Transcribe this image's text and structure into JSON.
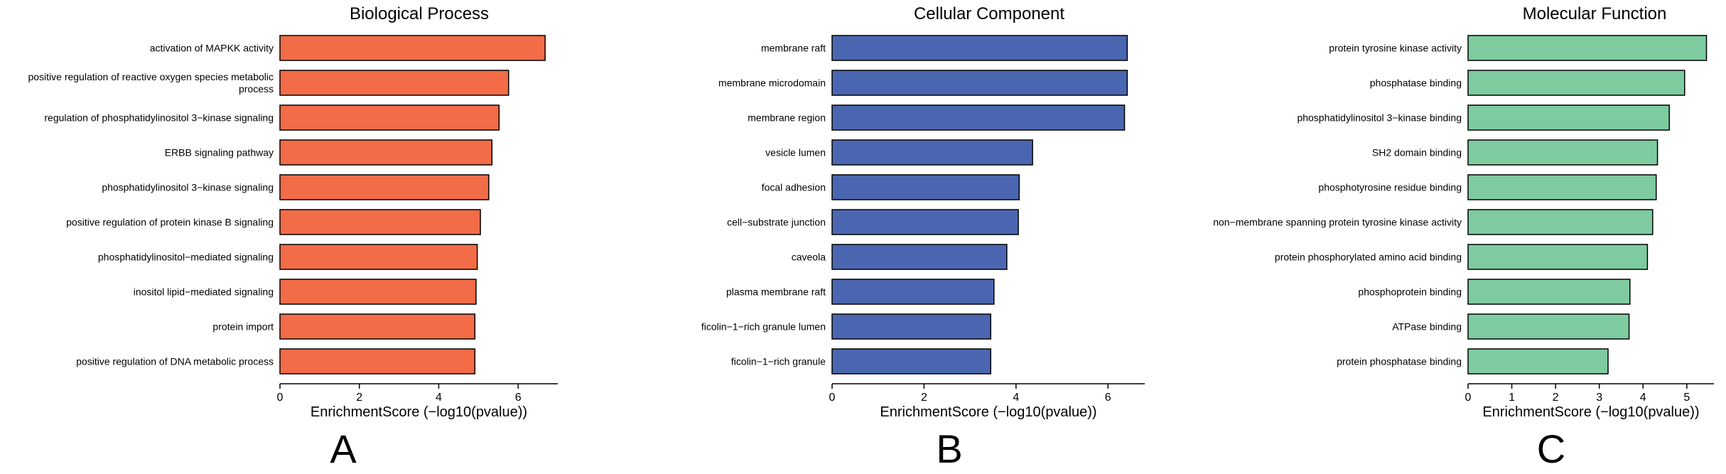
{
  "chart_data": [
    {
      "type": "bar",
      "orientation": "horizontal",
      "panel_letter": "A",
      "title": "Biological Process",
      "xlabel": "EnrichmentScore (−log10(pvalue))",
      "ylabel": "",
      "color": "#f26c47",
      "xlim": [
        0,
        7.0
      ],
      "xticks": [
        0,
        2,
        4,
        6
      ],
      "grid": false,
      "legend": "none",
      "categories": [
        [
          "activation of MAPKK activity"
        ],
        [
          "positive regulation of reactive oxygen species metabolic",
          "process"
        ],
        [
          "regulation of phosphatidylinositol 3−kinase signaling"
        ],
        [
          "ERBB signaling pathway"
        ],
        [
          "phosphatidylinositol 3−kinase signaling"
        ],
        [
          "positive regulation of protein kinase B signaling"
        ],
        [
          "phosphatidylinositol−mediated signaling"
        ],
        [
          "inositol lipid−mediated signaling"
        ],
        [
          "protein import"
        ],
        [
          "positive regulation of DNA metabolic process"
        ]
      ],
      "values": [
        6.68,
        5.76,
        5.52,
        5.34,
        5.26,
        5.05,
        4.97,
        4.94,
        4.91,
        4.91
      ]
    },
    {
      "type": "bar",
      "orientation": "horizontal",
      "panel_letter": "B",
      "title": "Cellular Component",
      "xlabel": "EnrichmentScore (−log10(pvalue))",
      "ylabel": "",
      "color": "#4b66b0",
      "xlim": [
        0,
        6.8
      ],
      "xticks": [
        0,
        2,
        4,
        6
      ],
      "grid": false,
      "legend": "none",
      "categories": [
        [
          "membrane raft"
        ],
        [
          "membrane microdomain"
        ],
        [
          "membrane region"
        ],
        [
          "vesicle lumen"
        ],
        [
          "focal adhesion"
        ],
        [
          "cell−substrate junction"
        ],
        [
          "caveola"
        ],
        [
          "plasma membrane raft"
        ],
        [
          "ficolin−1−rich granule lumen"
        ],
        [
          "ficolin−1−rich granule"
        ]
      ],
      "values": [
        6.42,
        6.42,
        6.36,
        4.36,
        4.07,
        4.05,
        3.8,
        3.52,
        3.45,
        3.45
      ]
    },
    {
      "type": "bar",
      "orientation": "horizontal",
      "panel_letter": "C",
      "title": "Molecular Function",
      "xlabel": "EnrichmentScore (−log10(pvalue))",
      "ylabel": "",
      "color": "#7ecba0",
      "xlim": [
        0,
        5.62
      ],
      "xticks": [
        0,
        1,
        2,
        3,
        4,
        5
      ],
      "grid": false,
      "legend": "none",
      "categories": [
        [
          "protein tyrosine kinase activity"
        ],
        [
          "phosphatase binding"
        ],
        [
          "phosphatidylinositol 3−kinase binding"
        ],
        [
          "SH2 domain binding"
        ],
        [
          "phosphotyrosine residue binding"
        ],
        [
          "non−membrane spanning protein tyrosine kinase activity"
        ],
        [
          "protein phosphorylated amino acid binding"
        ],
        [
          "phosphoprotein binding"
        ],
        [
          "ATPase binding"
        ],
        [
          "protein phosphatase binding"
        ]
      ],
      "values": [
        5.45,
        4.95,
        4.6,
        4.33,
        4.3,
        4.22,
        4.1,
        3.7,
        3.68,
        3.2
      ]
    }
  ]
}
